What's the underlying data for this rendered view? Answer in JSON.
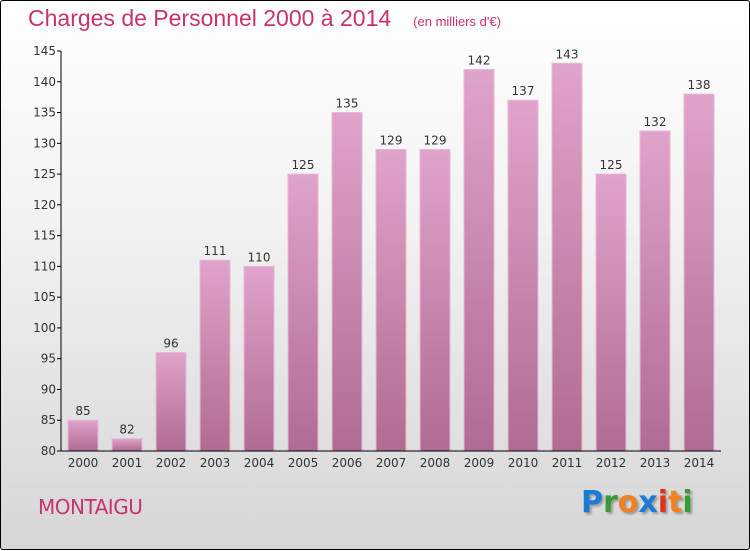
{
  "chart_data": {
    "type": "bar",
    "title": "Charges de Personnel 2000 à 2014",
    "subtitle": "(en milliers d'€)",
    "categories": [
      "2000",
      "2001",
      "2002",
      "2003",
      "2004",
      "2005",
      "2006",
      "2007",
      "2008",
      "2009",
      "2010",
      "2011",
      "2012",
      "2013",
      "2014"
    ],
    "values": [
      85,
      82,
      96,
      111,
      110,
      125,
      135,
      129,
      129,
      142,
      137,
      143,
      125,
      132,
      138
    ],
    "ylim": [
      80,
      145
    ],
    "yticks": [
      80,
      85,
      90,
      95,
      100,
      105,
      110,
      115,
      120,
      125,
      130,
      135,
      140,
      145
    ],
    "xlabel": "",
    "ylabel": "",
    "bar_color_top": "#e0a3cb",
    "bar_color_bottom": "#b06b94"
  },
  "footer": {
    "city": "MONTAIGU",
    "logo": "Proxiti"
  }
}
